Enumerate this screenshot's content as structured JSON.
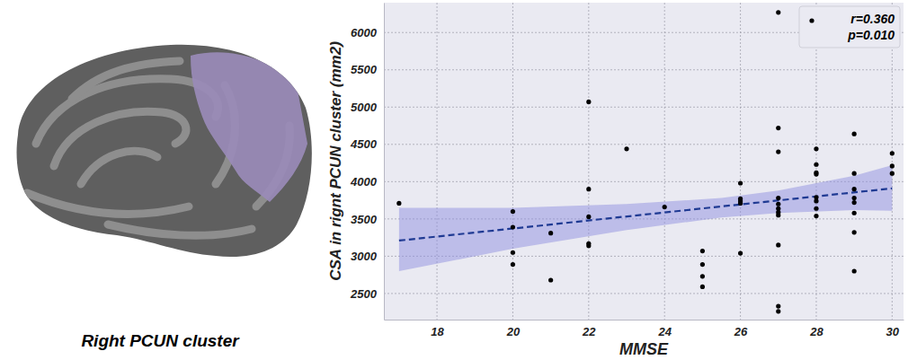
{
  "chart_data": {
    "type": "scatter",
    "title": "Right PCUN cluster",
    "x_label": "MMSE",
    "y_label": "CSA in rignt PCUN cluster (mm2)",
    "annotations": [
      "r=0.360",
      "p=0.010"
    ],
    "legend": "upper right",
    "grid": true,
    "xlim": [
      16.6,
      30.3
    ],
    "xticks": [
      18,
      20,
      22,
      24,
      26,
      28,
      30
    ],
    "ylim": [
      2150,
      6400
    ],
    "yticks": [
      2500,
      3000,
      3500,
      4000,
      4500,
      5000,
      5500,
      6000
    ],
    "series": [
      {
        "color": "#000000",
        "marker": "circle",
        "x": [
          17,
          20,
          20,
          20,
          20,
          21,
          21,
          22,
          22,
          22,
          22,
          22,
          23,
          24,
          25,
          25,
          25,
          25,
          26,
          26,
          26,
          26,
          26,
          27,
          27,
          27,
          27,
          27,
          27,
          27,
          27,
          27,
          27,
          27,
          28,
          28,
          28,
          28,
          28,
          28,
          28,
          28,
          29,
          29,
          29,
          29,
          29,
          29,
          29,
          29,
          30,
          30,
          30
        ],
        "values": [
          3710,
          3600,
          3390,
          3050,
          2890,
          3310,
          2680,
          5070,
          3900,
          3530,
          3170,
          3140,
          4440,
          3660,
          3070,
          2890,
          2730,
          2590,
          3980,
          3770,
          3740,
          3710,
          3040,
          6270,
          4720,
          4400,
          3780,
          3700,
          3640,
          3590,
          3550,
          3150,
          2330,
          2260,
          4440,
          4230,
          4120,
          4100,
          3790,
          3740,
          3640,
          3540,
          4640,
          4110,
          3900,
          3780,
          3720,
          3580,
          3320,
          2800,
          4380,
          4210,
          4110
        ]
      }
    ],
    "fit": {
      "x": [
        17,
        30
      ],
      "values": [
        3210,
        3910
      ],
      "color": "#1f3a93",
      "line_style": "dashed"
    },
    "ci_band": {
      "x": [
        17,
        20,
        23,
        25.5,
        27,
        29,
        30
      ],
      "lower": [
        2800,
        3100,
        3350,
        3520,
        3580,
        3620,
        3610
      ],
      "upper": [
        3650,
        3650,
        3700,
        3780,
        3880,
        4080,
        4220
      ],
      "color": "#8f8fe0"
    }
  }
}
